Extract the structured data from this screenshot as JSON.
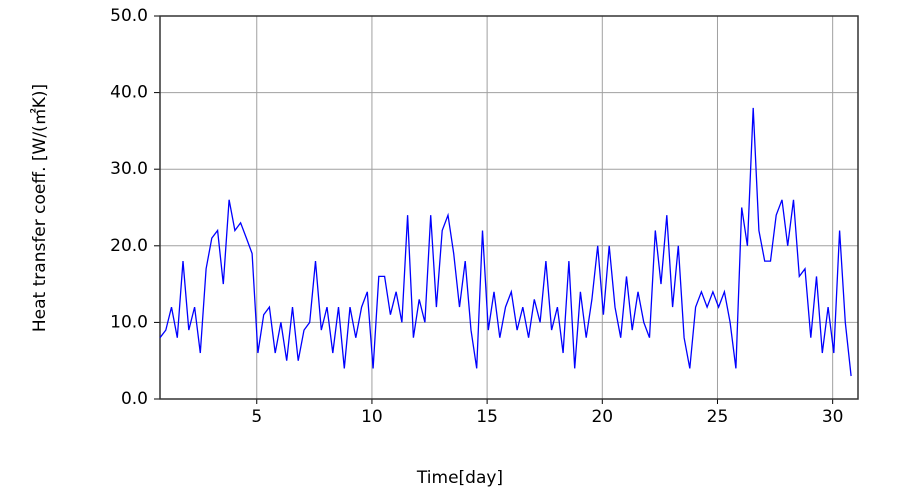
{
  "chart_data": {
    "type": "line",
    "x_label": "Time[day]",
    "y_label": "Heat transfer coeff. [W/(㎡K)]",
    "x": [
      0.8,
      1.05,
      1.3,
      1.55,
      1.8,
      2.05,
      2.3,
      2.55,
      2.8,
      3.05,
      3.3,
      3.55,
      3.8,
      4.05,
      4.3,
      4.55,
      4.8,
      5.05,
      5.3,
      5.55,
      5.8,
      6.05,
      6.3,
      6.55,
      6.8,
      7.05,
      7.3,
      7.55,
      7.8,
      8.05,
      8.3,
      8.55,
      8.8,
      9.05,
      9.3,
      9.55,
      9.8,
      10.05,
      10.3,
      10.55,
      10.8,
      11.05,
      11.3,
      11.55,
      11.8,
      12.05,
      12.3,
      12.55,
      12.8,
      13.05,
      13.3,
      13.55,
      13.8,
      14.05,
      14.3,
      14.55,
      14.8,
      15.05,
      15.3,
      15.55,
      15.8,
      16.05,
      16.3,
      16.55,
      16.8,
      17.05,
      17.3,
      17.55,
      17.8,
      18.05,
      18.3,
      18.55,
      18.8,
      19.05,
      19.3,
      19.55,
      19.8,
      20.05,
      20.3,
      20.55,
      20.8,
      21.05,
      21.3,
      21.55,
      21.8,
      22.05,
      22.3,
      22.55,
      22.8,
      23.05,
      23.3,
      23.55,
      23.8,
      24.05,
      24.3,
      24.55,
      24.8,
      25.05,
      25.3,
      25.55,
      25.8,
      26.05,
      26.3,
      26.55,
      26.8,
      27.05,
      27.3,
      27.55,
      27.8,
      28.05,
      28.3,
      28.55,
      28.8,
      29.05,
      29.3,
      29.55,
      29.8,
      30.05,
      30.3,
      30.55,
      30.8
    ],
    "series": [
      {
        "color": "#0000ff",
        "values": [
          8,
          9,
          12,
          8,
          18,
          9,
          12,
          6,
          17,
          21,
          22,
          15,
          26,
          22,
          23,
          21,
          19,
          6,
          11,
          12,
          6,
          10,
          5,
          12,
          5,
          9,
          10,
          18,
          9,
          12,
          6,
          12,
          4,
          12,
          8,
          12,
          14,
          4,
          16,
          16,
          11,
          14,
          10,
          24,
          8,
          13,
          10,
          24,
          12,
          22,
          24,
          19,
          12,
          18,
          9,
          4,
          22,
          9,
          14,
          8,
          12,
          14,
          9,
          12,
          8,
          13,
          10,
          18,
          9,
          12,
          6,
          18,
          4,
          14,
          8,
          13,
          20,
          11,
          20,
          12,
          8,
          16,
          9,
          14,
          10,
          8,
          22,
          15,
          24,
          12,
          20,
          8,
          4,
          12,
          14,
          12,
          14,
          12,
          14,
          10,
          4,
          25,
          20,
          38,
          22,
          18,
          18,
          24,
          26,
          20,
          26,
          16,
          17,
          8,
          16,
          6,
          12,
          6,
          22,
          10,
          3
        ]
      }
    ],
    "xlim": [
      0.8,
      31.1
    ],
    "ylim": [
      0,
      50
    ],
    "xticks": [
      5,
      10,
      15,
      20,
      25,
      30
    ],
    "yticks": [
      {
        "value": 0,
        "label": "0.0"
      },
      {
        "value": 10,
        "label": "10.0"
      },
      {
        "value": 20,
        "label": "20.0"
      },
      {
        "value": 30,
        "label": "30.0"
      },
      {
        "value": 40,
        "label": "40.0"
      },
      {
        "value": 50,
        "label": "50.0"
      }
    ],
    "grid": true
  }
}
